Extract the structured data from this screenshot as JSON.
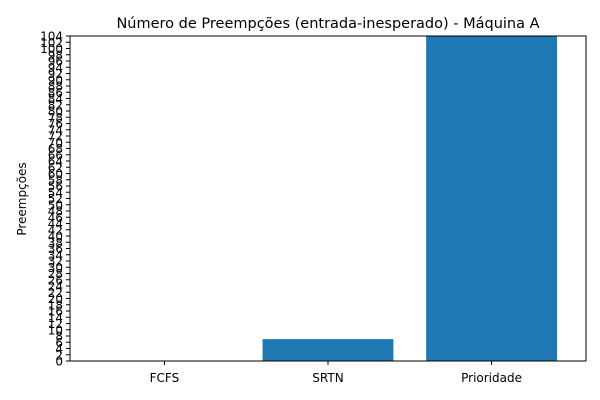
{
  "chart_data": {
    "type": "bar",
    "title": "Número de Preempções (entrada-inesperado) - Máquina A",
    "xlabel": "",
    "ylabel": "Preempções",
    "categories": [
      "FCFS",
      "SRTN",
      "Prioridade"
    ],
    "values": [
      0,
      7,
      104
    ],
    "ylim": [
      0,
      104
    ],
    "yticks": [
      0,
      2,
      4,
      6,
      8,
      10,
      12,
      14,
      16,
      18,
      20,
      22,
      24,
      26,
      28,
      30,
      32,
      34,
      36,
      38,
      40,
      42,
      44,
      46,
      48,
      50,
      52,
      54,
      56,
      58,
      60,
      62,
      64,
      66,
      68,
      70,
      72,
      74,
      76,
      78,
      80,
      82,
      84,
      86,
      88,
      90,
      92,
      94,
      96,
      98,
      100,
      102,
      104
    ],
    "bar_color": "#1f77b4",
    "grid": false,
    "legend": "none"
  }
}
